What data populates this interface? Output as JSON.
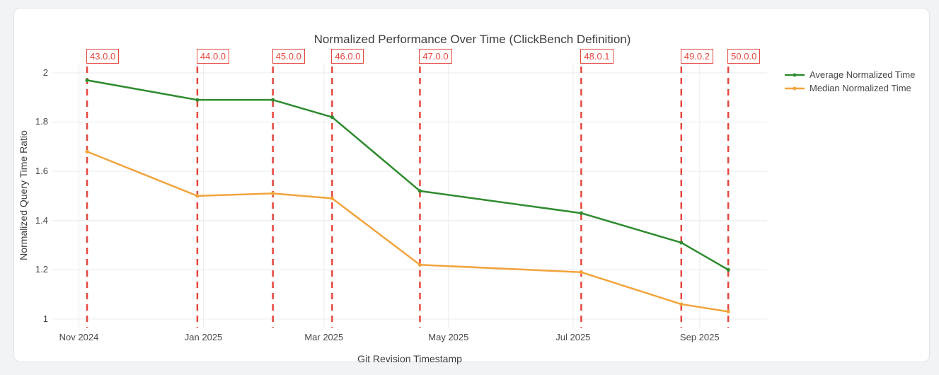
{
  "chart_data": {
    "type": "line",
    "title": "Normalized Performance Over Time (ClickBench Definition)",
    "xlabel": "Git Revision Timestamp",
    "ylabel": "Normalized Query Time Ratio",
    "legend_position": "top-right-outside",
    "grid": true,
    "x_range": [
      "2024-10-19",
      "2025-10-04"
    ],
    "x_ticks": [
      {
        "date": "2024-11-01",
        "label": "Nov 2024"
      },
      {
        "date": "2025-01-01",
        "label": "Jan 2025"
      },
      {
        "date": "2025-03-01",
        "label": "Mar 2025"
      },
      {
        "date": "2025-05-01",
        "label": "May 2025"
      },
      {
        "date": "2025-07-01",
        "label": "Jul 2025"
      },
      {
        "date": "2025-09-01",
        "label": "Sep 2025"
      }
    ],
    "y_range": [
      0.965,
      2.04
    ],
    "y_ticks": [
      {
        "value": 1,
        "label": "1"
      },
      {
        "value": 1.2,
        "label": "1.2"
      },
      {
        "value": 1.4,
        "label": "1.4"
      },
      {
        "value": 1.6,
        "label": "1.6"
      },
      {
        "value": 1.8,
        "label": "1.8"
      },
      {
        "value": 2,
        "label": "2"
      }
    ],
    "versions": {
      "labels": [
        "43.0.0",
        "44.0.0",
        "45.0.0",
        "46.0.0",
        "47.0.0",
        "48.0.1",
        "49.0.2",
        "50.0.0"
      ],
      "dates": [
        "2024-11-05",
        "2024-12-29",
        "2025-02-04",
        "2025-03-05",
        "2025-04-17",
        "2025-07-05",
        "2025-08-23",
        "2025-09-15"
      ],
      "line_color": "#e5473e"
    },
    "series": [
      {
        "name": "Average Normalized Time",
        "color": "#2e8b2e",
        "values": [
          1.97,
          1.89,
          1.89,
          1.82,
          1.52,
          1.43,
          1.31,
          1.2
        ]
      },
      {
        "name": "Median Normalized Time",
        "color": "#f2a43c",
        "values": [
          1.68,
          1.5,
          1.51,
          1.49,
          1.22,
          1.19,
          1.06,
          1.03
        ]
      }
    ],
    "colors": {
      "grid": "#eceef1",
      "tick_text": "#46484b",
      "title_text": "#3c3e41",
      "annotation": "#e5473e",
      "card_background": "#ffffff",
      "page_background": "#f1f3f6"
    }
  }
}
